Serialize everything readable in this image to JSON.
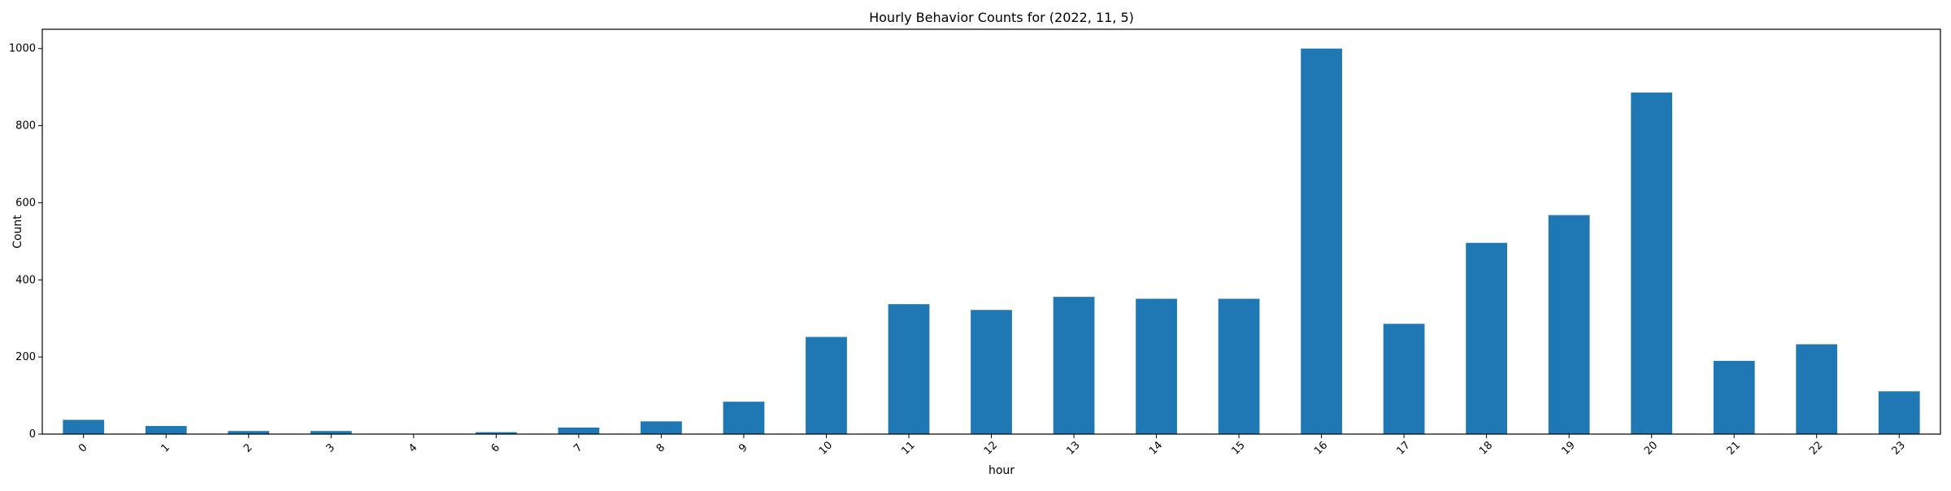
{
  "chart_data": {
    "type": "bar",
    "title": "Hourly Behavior Counts for (2022, 11, 5)",
    "xlabel": "hour",
    "ylabel": "Count",
    "categories": [
      "0",
      "1",
      "2",
      "3",
      "4",
      "6",
      "7",
      "8",
      "9",
      "10",
      "11",
      "12",
      "13",
      "14",
      "15",
      "16",
      "17",
      "18",
      "19",
      "20",
      "21",
      "22",
      "23"
    ],
    "values": [
      37,
      21,
      8,
      8,
      1,
      5,
      17,
      33,
      84,
      252,
      337,
      322,
      356,
      351,
      351,
      1000,
      286,
      496,
      568,
      886,
      190,
      233,
      111
    ],
    "ylim": [
      0,
      1050
    ],
    "yticks": [
      0,
      200,
      400,
      600,
      800,
      1000
    ],
    "bar_color": "#1f77b4",
    "grid": false,
    "legend": "none"
  }
}
